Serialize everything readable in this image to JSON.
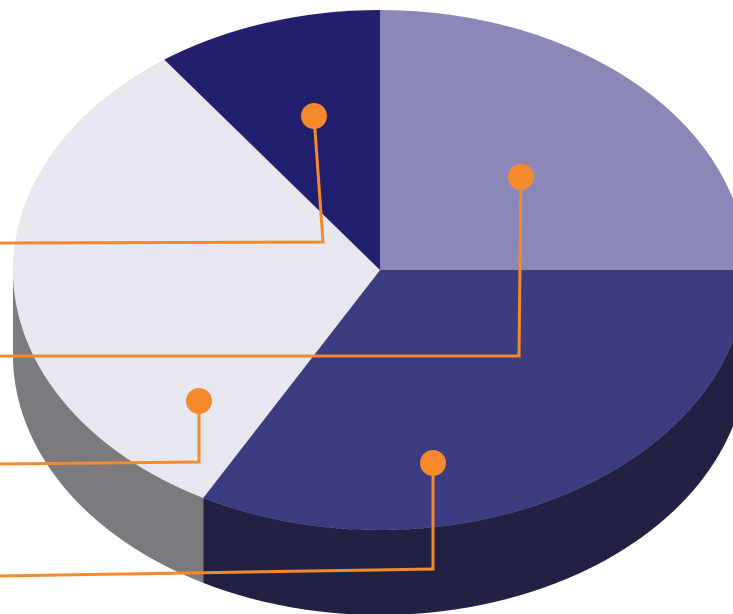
{
  "chart_data": {
    "type": "pie",
    "style": "3d",
    "slices": [
      {
        "value": 25,
        "color": "#8b88b8",
        "side_color": "#5e5b8a"
      },
      {
        "value": 33,
        "color": "#3d3c80",
        "side_color": "#222144"
      },
      {
        "value": 32,
        "color": "#e7e7f0",
        "side_color": "#7a7a7f"
      },
      {
        "value": 10,
        "color": "#221f6e",
        "side_color": "#15133f"
      }
    ],
    "callout_color": "#f5892e",
    "title": "",
    "legend": "none"
  }
}
